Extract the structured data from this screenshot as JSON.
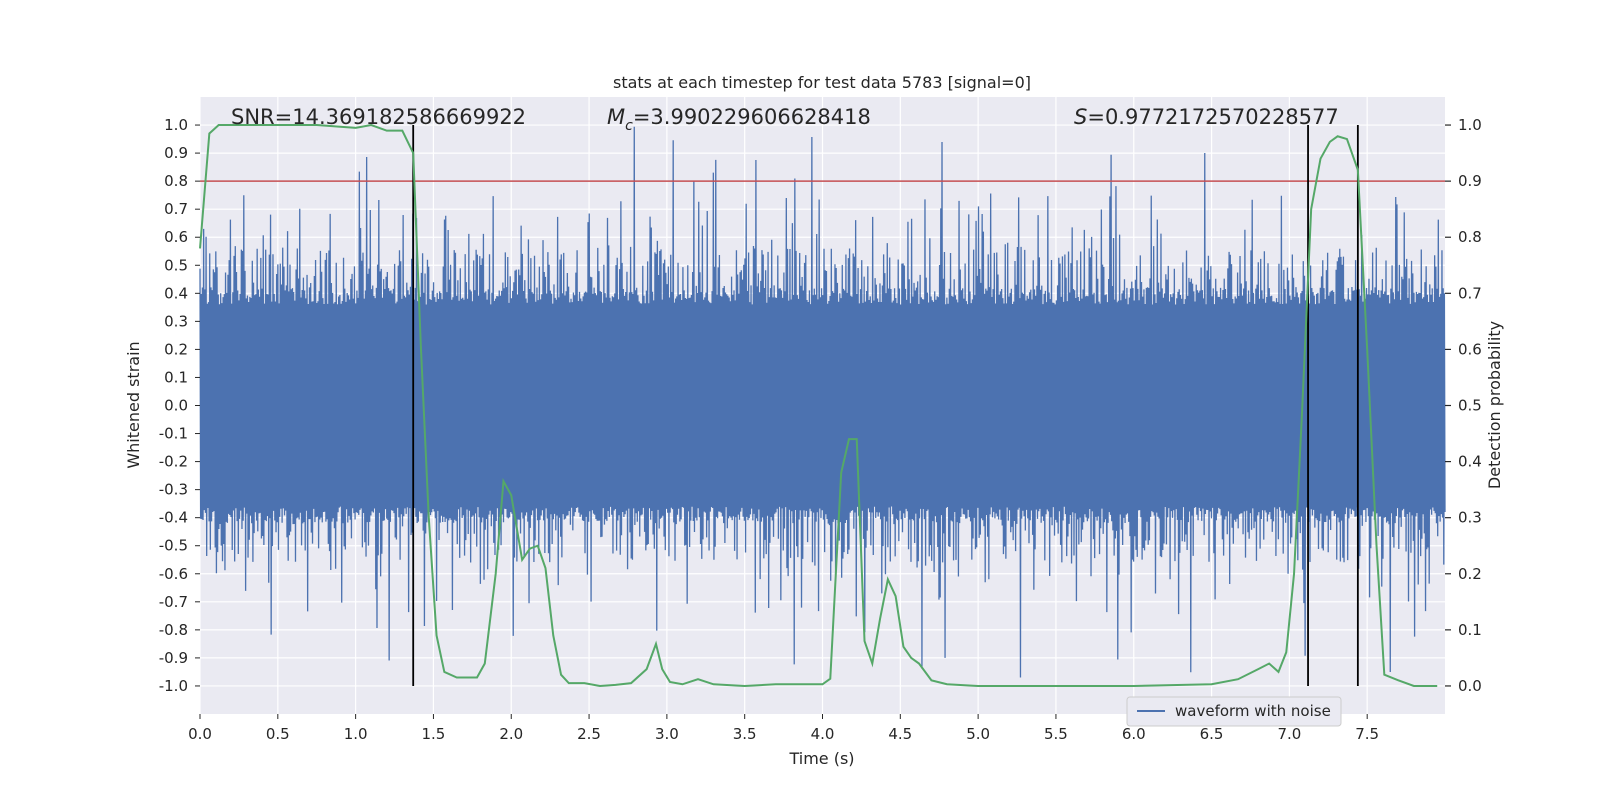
{
  "chart_data": {
    "type": "line",
    "title": "stats at each timestep for test data 5783 [signal=0]",
    "xlabel": "Time (s)",
    "ylabel": "Whitened strain",
    "y2label": "Detection probability",
    "xlim": [
      0.0,
      8.0
    ],
    "ylim": [
      -1.1,
      1.1
    ],
    "y2lim": [
      -0.05,
      1.05
    ],
    "xticks": [
      0.0,
      0.5,
      1.0,
      1.5,
      2.0,
      2.5,
      3.0,
      3.5,
      4.0,
      4.5,
      5.0,
      5.5,
      6.0,
      6.5,
      7.0,
      7.5
    ],
    "xtick_labels": [
      "0.0",
      "0.5",
      "1.0",
      "1.5",
      "2.0",
      "2.5",
      "3.0",
      "3.5",
      "4.0",
      "4.5",
      "5.0",
      "5.5",
      "6.0",
      "6.5",
      "7.0",
      "7.5"
    ],
    "yticks": [
      1.0,
      0.9,
      0.8,
      0.7,
      0.6,
      0.5,
      0.4,
      0.3,
      0.2,
      0.1,
      0.0,
      -0.1,
      -0.2,
      -0.3,
      -0.4,
      -0.5,
      -0.6,
      -0.7,
      -0.8,
      -0.9,
      -1.0
    ],
    "ytick_labels": [
      "1.0",
      "0.9",
      "0.8",
      "0.7",
      "0.6",
      "0.5",
      "0.4",
      "0.3",
      "0.2",
      "0.1",
      "0.0",
      "-0.1",
      "-0.2",
      "-0.3",
      "-0.4",
      "-0.5",
      "-0.6",
      "-0.7",
      "-0.8",
      "-0.9",
      "-1.0"
    ],
    "y2ticks": [
      1.0,
      0.9,
      0.8,
      0.7,
      0.6,
      0.5,
      0.4,
      0.3,
      0.2,
      0.1,
      0.0
    ],
    "y2tick_labels": [
      "1.0",
      "0.9",
      "0.8",
      "0.7",
      "0.6",
      "0.5",
      "0.4",
      "0.3",
      "0.2",
      "0.1",
      "0.0"
    ],
    "grid": true,
    "legend": {
      "location": "lower-right",
      "entries": [
        "waveform with noise"
      ]
    },
    "annotations": {
      "snr": "SNR=14.369182586669922",
      "mc_symbol": "M",
      "mc_sub": "c",
      "mc_value": "=3.990229606628418",
      "s_symbol": "S",
      "s_value": "=0.9772172570228577"
    },
    "threshold": {
      "axis": "y2",
      "value": 0.9,
      "color": "#c44e52"
    },
    "vertical_lines": [
      1.37,
      7.12,
      7.44
    ],
    "waveform": {
      "name": "waveform with noise",
      "color": "#4c72b0",
      "t_start": 0.0,
      "t_end": 8.0,
      "samples": 2048,
      "core_amplitude": 0.36,
      "peak_max": 1.0,
      "peak_min": -0.97
    },
    "series": [
      {
        "name": "detection probability",
        "axis": "y2",
        "color": "#55a868",
        "x": [
          0.0,
          0.06,
          0.12,
          0.25,
          0.5,
          0.75,
          1.0,
          1.1,
          1.2,
          1.3,
          1.37,
          1.42,
          1.47,
          1.52,
          1.57,
          1.65,
          1.78,
          1.83,
          1.9,
          1.95,
          2.0,
          2.07,
          2.12,
          2.17,
          2.22,
          2.27,
          2.32,
          2.37,
          2.47,
          2.57,
          2.67,
          2.77,
          2.87,
          2.93,
          2.97,
          3.02,
          3.1,
          3.2,
          3.3,
          3.5,
          3.7,
          3.8,
          3.9,
          4.0,
          4.05,
          4.12,
          4.17,
          4.22,
          4.27,
          4.32,
          4.37,
          4.42,
          4.47,
          4.52,
          4.57,
          4.62,
          4.7,
          4.8,
          5.0,
          5.5,
          6.0,
          6.5,
          6.67,
          6.8,
          6.87,
          6.93,
          6.98,
          7.03,
          7.08,
          7.14,
          7.2,
          7.26,
          7.31,
          7.37,
          7.44,
          7.5,
          7.56,
          7.61,
          7.7,
          7.8,
          7.95
        ],
        "y": [
          0.78,
          0.985,
          1.0,
          1.0,
          1.0,
          1.0,
          0.995,
          1.0,
          0.99,
          0.99,
          0.95,
          0.6,
          0.3,
          0.09,
          0.025,
          0.015,
          0.015,
          0.04,
          0.2,
          0.365,
          0.34,
          0.225,
          0.245,
          0.25,
          0.21,
          0.09,
          0.02,
          0.005,
          0.005,
          0.0,
          0.002,
          0.005,
          0.03,
          0.075,
          0.03,
          0.007,
          0.003,
          0.012,
          0.003,
          0.0,
          0.003,
          0.003,
          0.003,
          0.003,
          0.013,
          0.38,
          0.44,
          0.44,
          0.08,
          0.04,
          0.12,
          0.19,
          0.16,
          0.07,
          0.05,
          0.04,
          0.01,
          0.003,
          0.0,
          0.0,
          0.0,
          0.003,
          0.012,
          0.03,
          0.04,
          0.025,
          0.06,
          0.2,
          0.48,
          0.85,
          0.94,
          0.97,
          0.98,
          0.975,
          0.92,
          0.6,
          0.25,
          0.02,
          0.01,
          0.0,
          0.0
        ]
      }
    ]
  }
}
